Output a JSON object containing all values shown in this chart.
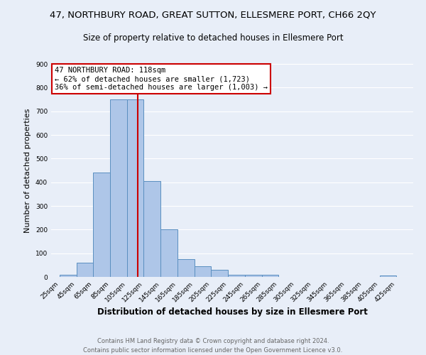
{
  "title": "47, NORTHBURY ROAD, GREAT SUTTON, ELLESMERE PORT, CH66 2QY",
  "subtitle": "Size of property relative to detached houses in Ellesmere Port",
  "xlabel": "Distribution of detached houses by size in Ellesmere Port",
  "ylabel": "Number of detached properties",
  "bar_edges": [
    25,
    45,
    65,
    85,
    105,
    125,
    145,
    165,
    185,
    205,
    225,
    245,
    265,
    285,
    305,
    325,
    345,
    365,
    385,
    405,
    425
  ],
  "bar_heights": [
    10,
    60,
    440,
    750,
    750,
    405,
    200,
    75,
    45,
    30,
    8,
    8,
    10,
    0,
    0,
    0,
    0,
    0,
    0,
    5
  ],
  "bar_color": "#aec6e8",
  "bar_edge_color": "#5a8fc0",
  "reference_line_x": 118,
  "reference_line_color": "#cc0000",
  "ylim": [
    0,
    900
  ],
  "yticks": [
    0,
    100,
    200,
    300,
    400,
    500,
    600,
    700,
    800,
    900
  ],
  "xtick_labels": [
    "25sqm",
    "45sqm",
    "65sqm",
    "85sqm",
    "105sqm",
    "125sqm",
    "145sqm",
    "165sqm",
    "185sqm",
    "205sqm",
    "225sqm",
    "245sqm",
    "265sqm",
    "285sqm",
    "305sqm",
    "325sqm",
    "345sqm",
    "365sqm",
    "385sqm",
    "405sqm",
    "425sqm"
  ],
  "annotation_title": "47 NORTHBURY ROAD: 118sqm",
  "annotation_line1": "← 62% of detached houses are smaller (1,723)",
  "annotation_line2": "36% of semi-detached houses are larger (1,003) →",
  "annotation_box_color": "#ffffff",
  "annotation_box_edge_color": "#cc0000",
  "footer_line1": "Contains HM Land Registry data © Crown copyright and database right 2024.",
  "footer_line2": "Contains public sector information licensed under the Open Government Licence v3.0.",
  "background_color": "#e8eef8",
  "plot_background_color": "#e8eef8",
  "grid_color": "#ffffff",
  "title_fontsize": 9.5,
  "subtitle_fontsize": 8.5,
  "xlabel_fontsize": 8.5,
  "ylabel_fontsize": 8,
  "footer_fontsize": 6,
  "tick_fontsize": 6.5,
  "annot_fontsize": 7.5
}
